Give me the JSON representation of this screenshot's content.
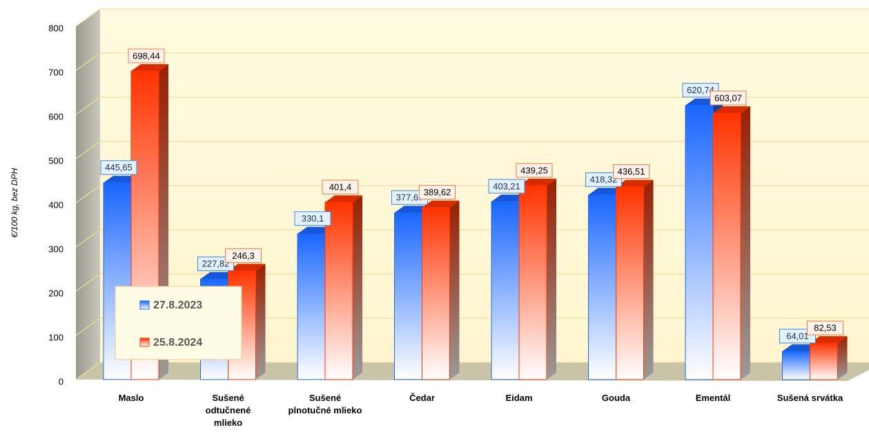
{
  "chart_data": {
    "type": "bar3d",
    "y_label": "€/100 kg, bez DPH",
    "categories": [
      "Maslo",
      "Sušené odtučnené mlieko",
      "Sušené plnotučné mlieko",
      "Čedar",
      "Eidam",
      "Gouda",
      "Ementál",
      "Sušená srvátka"
    ],
    "series": [
      {
        "name": "27.8.2023",
        "color": "#1a66ff",
        "values": [
          445.65,
          227.82,
          330.1,
          377.67,
          403.21,
          418.32,
          620.74,
          64.01
        ],
        "value_labels": [
          "445,65",
          "227,82",
          "330,1",
          "377,67",
          "403,21",
          "418,32",
          "620,74",
          "64,01"
        ]
      },
      {
        "name": "25.8.2024",
        "color": "#ff3300",
        "values": [
          698.44,
          246.3,
          401.4,
          389.62,
          439.25,
          436.51,
          603.07,
          82.53
        ],
        "value_labels": [
          "698,44",
          "246,3",
          "401,4",
          "389,62",
          "439,25",
          "436,51",
          "603,07",
          "82,53"
        ]
      }
    ],
    "ylim": [
      0,
      800
    ],
    "yticks": [
      0,
      100,
      200,
      300,
      400,
      500,
      600,
      700,
      800
    ],
    "grid": true
  }
}
